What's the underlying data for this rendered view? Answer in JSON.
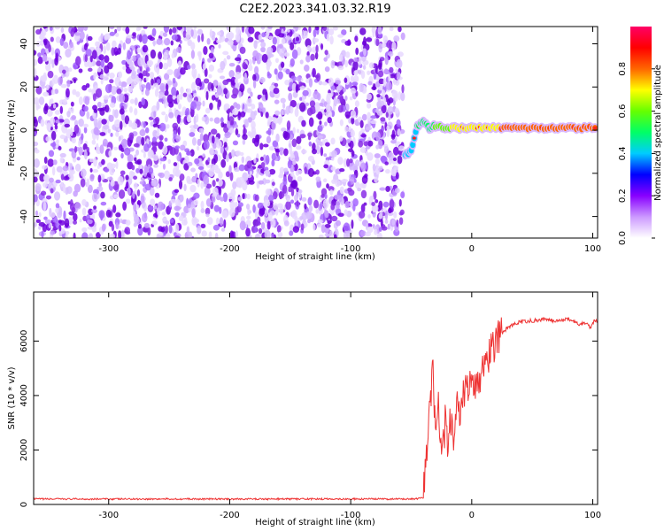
{
  "title": "C2E2.2023.341.03.32.R19",
  "chart_data": [
    {
      "type": "heatmap",
      "xlabel": "Height of straight line (km)",
      "ylabel": "Frequency (Hz)",
      "xlim": [
        -362,
        104
      ],
      "ylim": [
        -50,
        48
      ],
      "xticks": [
        -300,
        -200,
        -100,
        0,
        100
      ],
      "yticks": [
        -40,
        -20,
        0,
        20,
        40
      ],
      "noise_region_x": [
        -362,
        -55
      ],
      "signal_track": [
        {
          "x": -55,
          "y": -12,
          "amp": 0.3
        },
        {
          "x": -50,
          "y": -9,
          "amp": 0.35
        },
        {
          "x": -45,
          "y": 2,
          "amp": 0.45
        },
        {
          "x": -40,
          "y": 4,
          "amp": 0.5
        },
        {
          "x": -35,
          "y": 1,
          "amp": 0.55
        },
        {
          "x": -30,
          "y": 2,
          "amp": 0.6
        },
        {
          "x": -20,
          "y": 1,
          "amp": 0.7
        },
        {
          "x": -10,
          "y": 1,
          "amp": 0.8
        },
        {
          "x": 0,
          "y": 1,
          "amp": 0.85
        },
        {
          "x": 20,
          "y": 1,
          "amp": 0.88
        },
        {
          "x": 40,
          "y": 1,
          "amp": 0.9
        },
        {
          "x": 60,
          "y": 1,
          "amp": 0.92
        },
        {
          "x": 80,
          "y": 1,
          "amp": 0.92
        },
        {
          "x": 104,
          "y": 1,
          "amp": 0.9
        }
      ],
      "colorbar": {
        "label": "Normalized spectral amplitude",
        "range": [
          0,
          1
        ],
        "ticks": [
          "0.0",
          "0.2",
          "0.4",
          "0.6",
          "0.8"
        ],
        "colors": [
          "#ffffff",
          "#cc99ff",
          "#8800ff",
          "#0000ff",
          "#00ccff",
          "#00ff66",
          "#66ff00",
          "#ffff00",
          "#ff6600",
          "#ff0000",
          "#ff0066"
        ]
      }
    },
    {
      "type": "line",
      "xlabel": "Height of straight line (km)",
      "ylabel": "SNR (10 * v/v)",
      "xlim": [
        -362,
        104
      ],
      "ylim": [
        0,
        7800
      ],
      "xticks": [
        -300,
        -200,
        -100,
        0,
        100
      ],
      "yticks": [
        0,
        2000,
        4000,
        6000
      ],
      "series": [
        {
          "color": "#ee3333",
          "x": [
            -362,
            -300,
            -250,
            -200,
            -150,
            -100,
            -60,
            -45,
            -40,
            -38,
            -35,
            -32,
            -30,
            -28,
            -25,
            -22,
            -20,
            -18,
            -15,
            -12,
            -10,
            -5,
            0,
            5,
            10,
            15,
            20,
            25,
            30,
            40,
            50,
            60,
            70,
            80,
            90,
            95,
            98,
            100,
            104
          ],
          "y": [
            200,
            200,
            200,
            200,
            200,
            200,
            200,
            200,
            250,
            1500,
            3500,
            5000,
            2500,
            4000,
            1500,
            3000,
            2000,
            3500,
            2500,
            3800,
            3500,
            4200,
            4300,
            4600,
            5000,
            5600,
            6000,
            6300,
            6500,
            6700,
            6750,
            6800,
            6750,
            6800,
            6600,
            6700,
            6500,
            6700,
            6750
          ]
        }
      ]
    }
  ]
}
